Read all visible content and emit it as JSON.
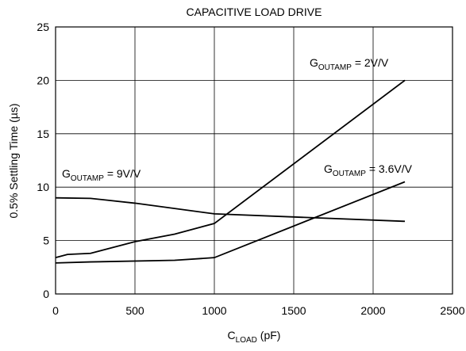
{
  "chart_data": {
    "type": "line",
    "title": "CAPACITIVE LOAD DRIVE",
    "ylabel": "0.5% Settling Time (µs)",
    "xlabel": {
      "main": "C",
      "sub": "LOAD",
      "rest": " (pF)"
    },
    "xlim": [
      0,
      2500
    ],
    "xticks": [
      0,
      500,
      1000,
      1500,
      2000,
      2500
    ],
    "ylim": [
      0,
      25
    ],
    "yticks": [
      0,
      5,
      10,
      15,
      20,
      25
    ],
    "grid": true,
    "series": [
      {
        "color": "#000000",
        "x": [
          0,
          75,
          220,
          500,
          750,
          1000,
          2200
        ],
        "values": [
          3.4,
          3.7,
          3.8,
          4.9,
          5.6,
          6.6,
          20
        ]
      },
      {
        "color": "#000000",
        "x": [
          0,
          220,
          500,
          1000,
          2200
        ],
        "values": [
          9.0,
          8.95,
          8.5,
          7.5,
          6.8
        ]
      },
      {
        "color": "#000000",
        "x": [
          0,
          220,
          750,
          1000,
          2200
        ],
        "values": [
          2.9,
          3.0,
          3.15,
          3.4,
          10.5
        ]
      }
    ],
    "annotations": [
      {
        "main": "G",
        "sub": "OUTAMP",
        "rest": " = 2V/V"
      },
      {
        "main": "G",
        "sub": "OUTAMP",
        "rest": " = 9V/V"
      },
      {
        "main": "G",
        "sub": "OUTAMP",
        "rest": " = 3.6V/V"
      }
    ]
  }
}
